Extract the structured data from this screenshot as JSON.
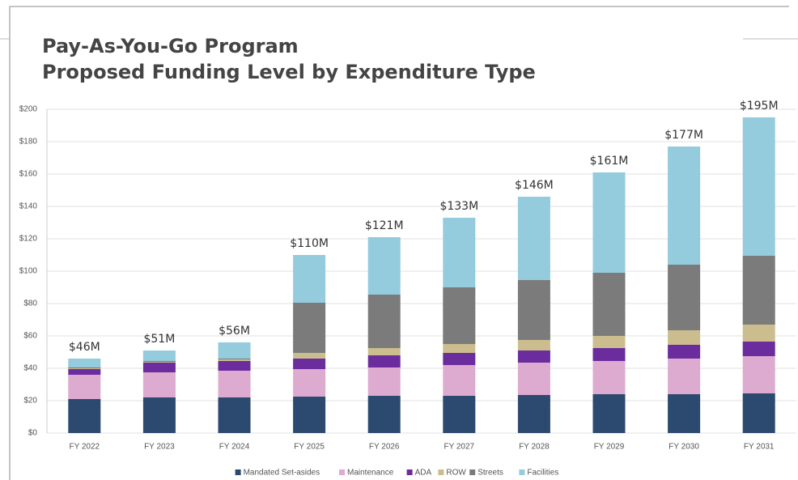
{
  "chart_data": {
    "type": "stacked_bar",
    "title": "Pay-As-You-Go Program",
    "subtitle": "Proposed Funding Level by Expenditure Type",
    "categories": [
      "FY 2022",
      "FY 2023",
      "FY 2024",
      "FY 2025",
      "FY 2026",
      "FY 2027",
      "FY 2028",
      "FY 2029",
      "FY 2030",
      "FY 2031"
    ],
    "series": [
      {
        "name": "Mandated Set-asides",
        "color": "#2c4a70",
        "values": [
          21,
          22,
          22,
          22.5,
          23,
          23,
          23.5,
          24,
          24,
          24.5
        ]
      },
      {
        "name": "Maintenance",
        "color": "#dcabcf",
        "values": [
          15,
          15.5,
          16.5,
          17,
          17.5,
          19,
          20,
          20.5,
          22,
          23
        ]
      },
      {
        "name": "ADA",
        "color": "#6b2d9e",
        "values": [
          3.5,
          6,
          6,
          6.5,
          7.5,
          7.5,
          7.5,
          8,
          8.5,
          9
        ]
      },
      {
        "name": "ROW",
        "color": "#cbbd8e",
        "values": [
          0.5,
          0.5,
          1,
          3.5,
          4.5,
          5.5,
          6.5,
          7.5,
          9,
          10.5
        ]
      },
      {
        "name": "Streets",
        "color": "#7b7b7b",
        "values": [
          0.5,
          0.5,
          0.5,
          31,
          33,
          35,
          37,
          39,
          40.5,
          42.5
        ]
      },
      {
        "name": "Facilities",
        "color": "#94cbdd",
        "values": [
          5.5,
          6.5,
          10,
          29.5,
          35.5,
          43,
          51.5,
          62,
          73,
          85.5
        ]
      }
    ],
    "totals": {
      "values": [
        46,
        51,
        56,
        110,
        121,
        133,
        146,
        161,
        177,
        195
      ],
      "value_labels": [
        "$46M",
        "$51M",
        "$56M",
        "$110M",
        "$121M",
        "$133M",
        "$146M",
        "$161M",
        "$177M",
        "$195M"
      ]
    },
    "ylim": [
      0,
      200
    ],
    "yticks": [
      {
        "value": 0,
        "label": "$0"
      },
      {
        "value": 20,
        "label": "$20"
      },
      {
        "value": 40,
        "label": "$40"
      },
      {
        "value": 60,
        "label": "$60"
      },
      {
        "value": 80,
        "label": "$80"
      },
      {
        "value": 100,
        "label": "$100"
      },
      {
        "value": 120,
        "label": "$120"
      },
      {
        "value": 140,
        "label": "$140"
      },
      {
        "value": 160,
        "label": "$160"
      },
      {
        "value": 180,
        "label": "$180"
      },
      {
        "value": 200,
        "label": "$200"
      }
    ],
    "grid": true,
    "legend": "bottom"
  }
}
